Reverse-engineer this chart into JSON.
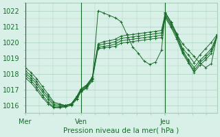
{
  "bg_color": "#d8f0e8",
  "grid_color": "#aacfba",
  "line_color": "#1a6b2a",
  "xlabel": "Pression niveau de la mer( hPa )",
  "xlabel_color": "#1a6b2a",
  "tick_color": "#1a6b2a",
  "ylim": [
    1015.5,
    1022.5
  ],
  "yticks": [
    1016,
    1017,
    1018,
    1019,
    1020,
    1021,
    1022
  ],
  "day_labels": [
    "Mer",
    "Ven",
    "Jeu"
  ],
  "day_positions": [
    0,
    0.29,
    0.73
  ],
  "xlim": [
    0,
    1.0
  ],
  "series": [
    [
      [
        0.0,
        1018.4
      ],
      [
        0.03,
        1018.1
      ],
      [
        0.06,
        1017.7
      ],
      [
        0.09,
        1017.2
      ],
      [
        0.12,
        1016.7
      ],
      [
        0.15,
        1016.2
      ],
      [
        0.18,
        1016.1
      ],
      [
        0.21,
        1016.0
      ],
      [
        0.24,
        1016.1
      ],
      [
        0.27,
        1016.6
      ],
      [
        0.29,
        1017.05
      ],
      [
        0.32,
        1017.3
      ],
      [
        0.35,
        1017.8
      ],
      [
        0.38,
        1019.9
      ],
      [
        0.41,
        1020.05
      ],
      [
        0.44,
        1020.1
      ],
      [
        0.47,
        1020.2
      ],
      [
        0.5,
        1020.4
      ],
      [
        0.53,
        1020.45
      ],
      [
        0.56,
        1020.5
      ],
      [
        0.59,
        1020.55
      ],
      [
        0.62,
        1020.6
      ],
      [
        0.65,
        1020.65
      ],
      [
        0.68,
        1020.7
      ],
      [
        0.71,
        1020.75
      ],
      [
        0.73,
        1021.85
      ],
      [
        0.76,
        1021.25
      ],
      [
        0.79,
        1020.55
      ],
      [
        0.82,
        1019.6
      ],
      [
        0.85,
        1019.2
      ],
      [
        0.88,
        1018.7
      ],
      [
        0.91,
        1019.2
      ],
      [
        0.94,
        1019.6
      ],
      [
        0.97,
        1020.0
      ],
      [
        1.0,
        1020.5
      ]
    ],
    [
      [
        0.0,
        1018.2
      ],
      [
        0.03,
        1017.9
      ],
      [
        0.06,
        1017.5
      ],
      [
        0.09,
        1017.0
      ],
      [
        0.12,
        1016.55
      ],
      [
        0.15,
        1016.1
      ],
      [
        0.18,
        1016.05
      ],
      [
        0.21,
        1016.0
      ],
      [
        0.24,
        1016.1
      ],
      [
        0.27,
        1016.55
      ],
      [
        0.29,
        1017.0
      ],
      [
        0.32,
        1017.25
      ],
      [
        0.35,
        1017.75
      ],
      [
        0.38,
        1019.8
      ],
      [
        0.41,
        1019.9
      ],
      [
        0.44,
        1019.95
      ],
      [
        0.47,
        1020.05
      ],
      [
        0.5,
        1020.25
      ],
      [
        0.53,
        1020.3
      ],
      [
        0.56,
        1020.35
      ],
      [
        0.59,
        1020.4
      ],
      [
        0.62,
        1020.45
      ],
      [
        0.65,
        1020.5
      ],
      [
        0.68,
        1020.55
      ],
      [
        0.71,
        1020.6
      ],
      [
        0.73,
        1021.75
      ],
      [
        0.76,
        1021.15
      ],
      [
        0.79,
        1020.45
      ],
      [
        0.82,
        1019.5
      ],
      [
        0.85,
        1018.9
      ],
      [
        0.88,
        1018.4
      ],
      [
        0.91,
        1018.85
      ],
      [
        0.94,
        1019.2
      ],
      [
        0.97,
        1019.6
      ],
      [
        1.0,
        1020.45
      ]
    ],
    [
      [
        0.0,
        1018.05
      ],
      [
        0.03,
        1017.75
      ],
      [
        0.06,
        1017.35
      ],
      [
        0.09,
        1016.85
      ],
      [
        0.12,
        1016.4
      ],
      [
        0.15,
        1016.0
      ],
      [
        0.18,
        1015.95
      ],
      [
        0.21,
        1016.0
      ],
      [
        0.24,
        1016.1
      ],
      [
        0.27,
        1016.5
      ],
      [
        0.29,
        1016.95
      ],
      [
        0.32,
        1017.2
      ],
      [
        0.35,
        1017.7
      ],
      [
        0.38,
        1019.7
      ],
      [
        0.41,
        1019.75
      ],
      [
        0.44,
        1019.8
      ],
      [
        0.47,
        1019.9
      ],
      [
        0.5,
        1020.1
      ],
      [
        0.53,
        1020.15
      ],
      [
        0.56,
        1020.2
      ],
      [
        0.59,
        1020.25
      ],
      [
        0.62,
        1020.3
      ],
      [
        0.65,
        1020.35
      ],
      [
        0.68,
        1020.4
      ],
      [
        0.71,
        1020.45
      ],
      [
        0.73,
        1021.65
      ],
      [
        0.76,
        1021.05
      ],
      [
        0.79,
        1020.35
      ],
      [
        0.82,
        1019.4
      ],
      [
        0.85,
        1018.8
      ],
      [
        0.88,
        1018.2
      ],
      [
        0.91,
        1018.7
      ],
      [
        0.94,
        1019.05
      ],
      [
        0.97,
        1019.45
      ],
      [
        1.0,
        1020.4
      ]
    ],
    [
      [
        0.0,
        1017.9
      ],
      [
        0.03,
        1017.6
      ],
      [
        0.06,
        1017.15
      ],
      [
        0.09,
        1016.65
      ],
      [
        0.12,
        1016.2
      ],
      [
        0.15,
        1015.9
      ],
      [
        0.18,
        1015.9
      ],
      [
        0.21,
        1015.95
      ],
      [
        0.24,
        1016.05
      ],
      [
        0.27,
        1016.45
      ],
      [
        0.29,
        1016.9
      ],
      [
        0.32,
        1017.15
      ],
      [
        0.35,
        1017.65
      ],
      [
        0.38,
        1019.6
      ],
      [
        0.41,
        1019.65
      ],
      [
        0.44,
        1019.7
      ],
      [
        0.47,
        1019.75
      ],
      [
        0.5,
        1019.95
      ],
      [
        0.53,
        1020.0
      ],
      [
        0.56,
        1020.05
      ],
      [
        0.59,
        1020.1
      ],
      [
        0.62,
        1020.15
      ],
      [
        0.65,
        1020.2
      ],
      [
        0.68,
        1020.25
      ],
      [
        0.71,
        1020.3
      ],
      [
        0.73,
        1021.55
      ],
      [
        0.76,
        1020.95
      ],
      [
        0.79,
        1020.2
      ],
      [
        0.82,
        1019.3
      ],
      [
        0.85,
        1018.7
      ],
      [
        0.88,
        1018.1
      ],
      [
        0.91,
        1018.55
      ],
      [
        0.94,
        1018.9
      ],
      [
        0.97,
        1019.3
      ],
      [
        1.0,
        1020.35
      ]
    ],
    [
      [
        0.0,
        1017.75
      ],
      [
        0.03,
        1017.45
      ],
      [
        0.06,
        1017.0
      ],
      [
        0.09,
        1016.5
      ],
      [
        0.12,
        1016.1
      ],
      [
        0.15,
        1015.85
      ],
      [
        0.18,
        1015.85
      ],
      [
        0.21,
        1015.9
      ],
      [
        0.24,
        1016.0
      ],
      [
        0.27,
        1016.4
      ],
      [
        0.29,
        1016.85
      ],
      [
        0.32,
        1017.1
      ],
      [
        0.35,
        1017.55
      ],
      [
        0.38,
        1022.0
      ],
      [
        0.41,
        1021.85
      ],
      [
        0.44,
        1021.7
      ],
      [
        0.47,
        1021.55
      ],
      [
        0.5,
        1021.3
      ],
      [
        0.53,
        1020.5
      ],
      [
        0.56,
        1019.7
      ],
      [
        0.59,
        1019.3
      ],
      [
        0.62,
        1018.8
      ],
      [
        0.65,
        1018.6
      ],
      [
        0.68,
        1018.75
      ],
      [
        0.71,
        1019.5
      ],
      [
        0.73,
        1021.9
      ],
      [
        0.76,
        1021.3
      ],
      [
        0.79,
        1020.5
      ],
      [
        0.82,
        1019.9
      ],
      [
        0.85,
        1019.5
      ],
      [
        0.88,
        1019.1
      ],
      [
        0.91,
        1018.7
      ],
      [
        0.94,
        1018.4
      ],
      [
        0.97,
        1018.65
      ],
      [
        1.0,
        1020.5
      ]
    ]
  ]
}
